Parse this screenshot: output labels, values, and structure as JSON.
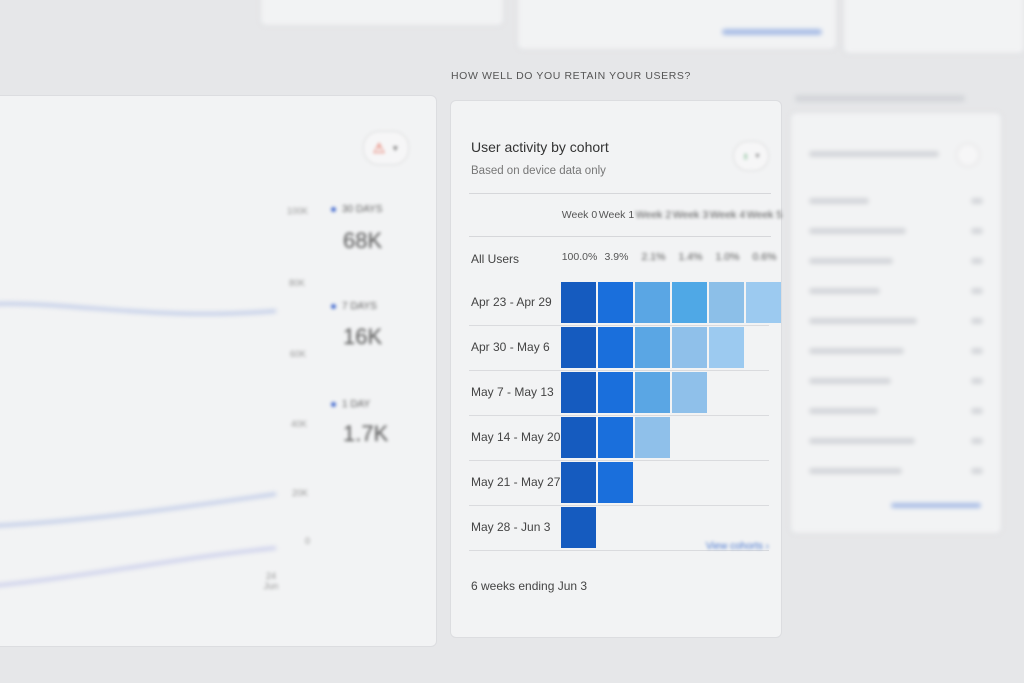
{
  "section_title": "HOW WELL DO YOU RETAIN YOUR USERS?",
  "cohort_card": {
    "title": "User activity by cohort",
    "subtitle": "Based on device data only",
    "weeks": [
      "Week 0",
      "Week 1",
      "Week 2",
      "Week 3",
      "Week 4",
      "Week 5"
    ],
    "all_users_label": "All Users",
    "all_users_values": [
      "100.0%",
      "3.9%",
      "2.1%",
      "1.4%",
      "1.0%",
      "0.6%"
    ],
    "rows": [
      {
        "label": "Apr 23 - Apr 29",
        "cells": 6
      },
      {
        "label": "Apr 30 - May 6",
        "cells": 5
      },
      {
        "label": "May 7 - May 13",
        "cells": 4
      },
      {
        "label": "May 14 - May 20",
        "cells": 3
      },
      {
        "label": "May 21 - May 27",
        "cells": 2
      },
      {
        "label": "May 28 - Jun 3",
        "cells": 1
      }
    ],
    "week_colors": [
      "#155bbf",
      "#1a6fdc",
      "#5aa6e4",
      "#4fa8e6",
      "#8cbfe8",
      "#9ccaf0"
    ],
    "footer": "6 weeks ending Jun 3",
    "view_link": "View cohorts"
  },
  "active_users_card": {
    "legend": [
      {
        "label": "30 DAYS",
        "value": "68K"
      },
      {
        "label": "7 DAYS",
        "value": "16K"
      },
      {
        "label": "1 DAY",
        "value": "1.7K"
      }
    ],
    "y_ticks": [
      "100K",
      "80K",
      "60K",
      "40K",
      "20K",
      "0"
    ],
    "x_ticks": [
      "24 Jun"
    ],
    "alert_icon": "warning-icon"
  },
  "accent_color": "#1a6fdc"
}
